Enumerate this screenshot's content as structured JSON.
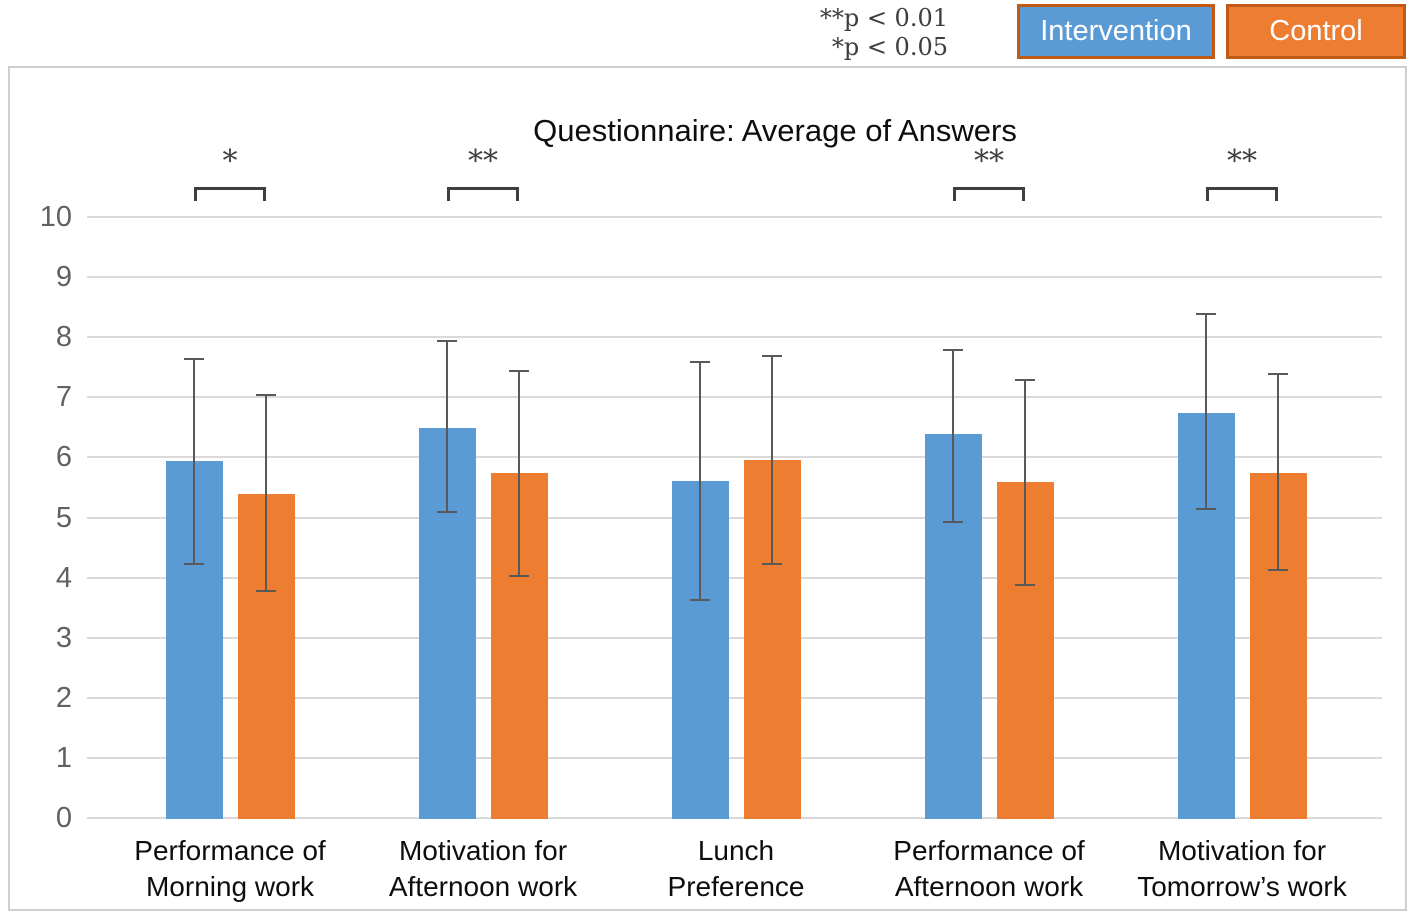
{
  "annotation": {
    "line1": "**p < 0.01",
    "line2": "*p < 0.05"
  },
  "legend": [
    {
      "label": "Intervention",
      "color": "#5b9bd5"
    },
    {
      "label": "Control",
      "color": "#ed7d31"
    }
  ],
  "colors": {
    "intervention": "#5b9bd5",
    "control": "#ed7d31",
    "legend_border": "#c05a14",
    "error_bar": "#595959",
    "gridline": "#dadada",
    "bracket": "#3f3f3f"
  },
  "chart_data": {
    "type": "bar",
    "title": "Questionnaire: Average of Answers",
    "categories": [
      [
        "Performance of",
        "Morning work"
      ],
      [
        "Motivation for",
        "Afternoon work"
      ],
      [
        "Lunch",
        "Preference"
      ],
      [
        "Performance of",
        "Afternoon work"
      ],
      [
        "Motivation for",
        "Tomorrow’s work"
      ]
    ],
    "series": [
      {
        "name": "Intervention",
        "color": "#5b9bd5",
        "values": [
          5.95,
          6.5,
          5.62,
          6.4,
          6.75
        ],
        "error_low": [
          4.25,
          5.1,
          3.65,
          4.95,
          5.15
        ],
        "error_high": [
          7.65,
          7.95,
          7.6,
          7.8,
          8.4
        ]
      },
      {
        "name": "Control",
        "color": "#ed7d31",
        "values": [
          5.4,
          5.75,
          5.98,
          5.6,
          5.75
        ],
        "error_low": [
          3.8,
          4.05,
          4.25,
          3.9,
          4.15
        ],
        "error_high": [
          7.05,
          7.45,
          7.7,
          7.3,
          7.4
        ]
      }
    ],
    "significance": [
      "*",
      "**",
      null,
      "**",
      "**"
    ],
    "xlabel": "",
    "ylabel": "",
    "ylim": [
      0,
      10
    ],
    "yticks": [
      0,
      1,
      2,
      3,
      4,
      5,
      6,
      7,
      8,
      9,
      10
    ],
    "grid": true,
    "legend_position": "top-right"
  }
}
